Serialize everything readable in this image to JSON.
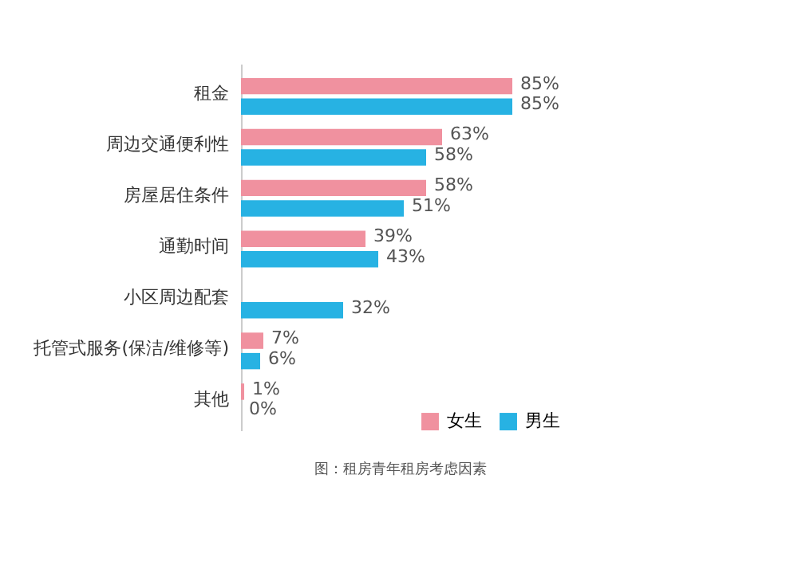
{
  "chart_data": {
    "type": "bar",
    "orientation": "horizontal",
    "categories": [
      "租金",
      "周边交通便利性",
      "房屋居住条件",
      "通勤时间",
      "小区周边配套",
      "托管式服务(保洁/维修等)",
      "其他"
    ],
    "series": [
      {
        "name": "女生",
        "color": "#f0919f",
        "values": [
          85,
          63,
          58,
          39,
          null,
          7,
          1
        ],
        "value_labels": [
          "85%",
          "63%",
          "58%",
          "39%",
          null,
          "7%",
          "1%"
        ]
      },
      {
        "name": "男生",
        "color": "#27b2e3",
        "values": [
          85,
          58,
          51,
          43,
          32,
          6,
          0
        ],
        "value_labels": [
          "85%",
          "58%",
          "51%",
          "43%",
          "32%",
          "6%",
          "0%"
        ]
      }
    ],
    "tick_labels": "y",
    "legend": "bottom right",
    "annotations": [
      "图：租房青年租房考虑因素"
    ]
  }
}
